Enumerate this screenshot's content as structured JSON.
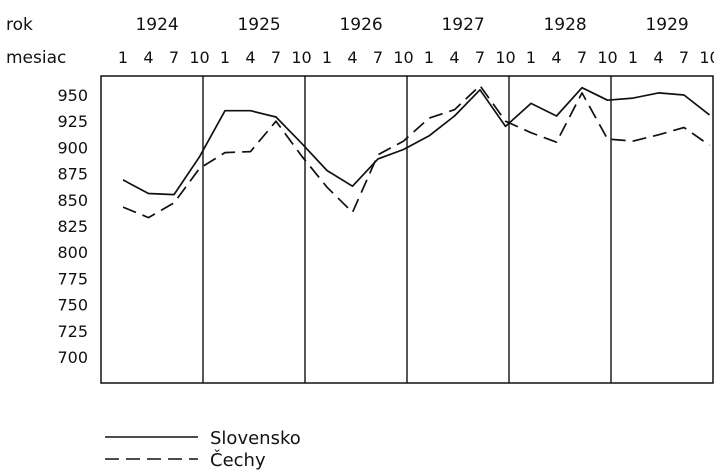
{
  "chart_data": {
    "type": "line",
    "row_labels": {
      "year": "rok",
      "month": "mesiac"
    },
    "years": [
      "1924",
      "1925",
      "1926",
      "1927",
      "1928",
      "1929"
    ],
    "month_ticks": [
      "1",
      "4",
      "7",
      "10"
    ],
    "y_ticks": [
      "950",
      "925",
      "900",
      "875",
      "850",
      "825",
      "800",
      "775",
      "750",
      "725",
      "700"
    ],
    "ylim": [
      700,
      950
    ],
    "x": [
      "1924-01",
      "1924-04",
      "1924-07",
      "1924-10",
      "1925-01",
      "1925-04",
      "1925-07",
      "1925-10",
      "1926-01",
      "1926-04",
      "1926-07",
      "1926-10",
      "1927-01",
      "1927-04",
      "1927-07",
      "1927-10",
      "1928-01",
      "1928-04",
      "1928-07",
      "1928-10",
      "1929-01",
      "1929-04",
      "1929-07",
      "1929-10"
    ],
    "series": [
      {
        "name": "Slovensko",
        "style": "solid",
        "values": [
          869,
          856,
          855,
          891,
          935,
          935,
          929,
          904,
          878,
          863,
          889,
          898,
          911,
          930,
          955,
          920,
          942,
          930,
          957,
          945,
          947,
          952,
          950,
          931
        ]
      },
      {
        "name": "Čechy",
        "style": "dashed",
        "values": [
          843,
          833,
          847,
          880,
          895,
          896,
          925,
          892,
          862,
          838,
          893,
          906,
          928,
          936,
          959,
          925,
          914,
          905,
          952,
          908,
          906,
          912,
          919,
          902
        ]
      }
    ],
    "grid": false
  }
}
